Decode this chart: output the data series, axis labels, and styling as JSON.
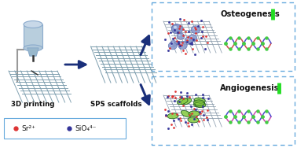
{
  "bg_color": "#ffffff",
  "label_3d_printing": "3D printing",
  "label_sps": "SPS scaffolds",
  "label_osteogenesis": "Osteogenesis",
  "label_angiogenesis": "Angiogenesis",
  "legend_sr": "Sr²⁺",
  "legend_sio4": "SiO₄⁴⁻",
  "legend_sr_color": "#dd3333",
  "legend_sio4_color": "#333399",
  "box_color": "#66aadd",
  "arrow_color": "#1a2f7a",
  "green_bar_color": "#22dd22",
  "printer_body_color": "#b8cedd",
  "printer_edge_color": "#8aaacc",
  "scaffold_line_color": "#7799aa",
  "scaffold_fill_color": "#aabbcc",
  "sphere_color": "#8899cc",
  "ellipse_color": "#88cc44",
  "dna_strand1_color": "#cc4444",
  "dna_strand2_color": "#4444cc",
  "dna_accent_color": "#44cc44",
  "dna_strand3_color": "#cc44aa"
}
